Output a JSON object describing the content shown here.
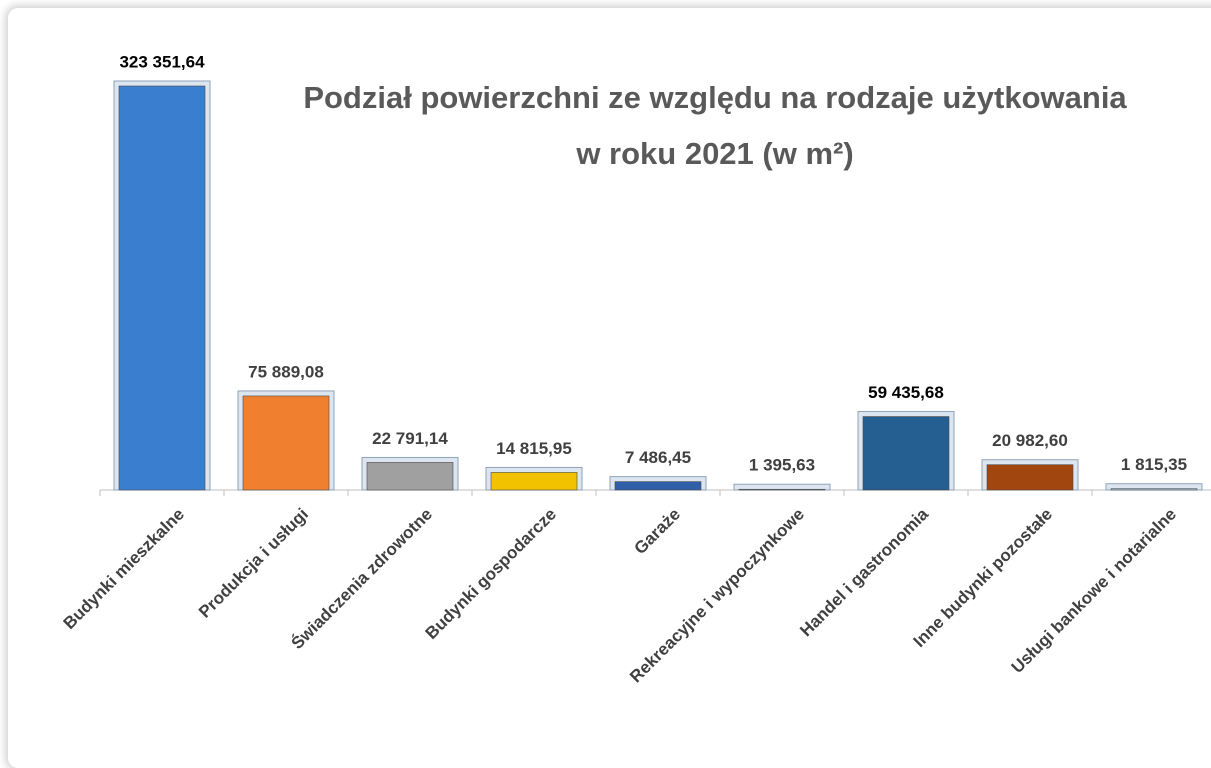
{
  "chart_data": {
    "type": "bar",
    "title": [
      "Podział powierzchni ze względu na rodzaje użytkowania",
      "w roku 2021 (w m²)"
    ],
    "categories": [
      "Budynki mieszkalne",
      "Produkcja i usługi",
      "Świadczenia zdrowotne",
      "Budynki gospodarcze",
      "Garaże",
      "Rekreacyjne i wypoczynkowe",
      "Handel i gastronomia",
      "Inne budynki pozostałe",
      "Usługi bankowe i notarialne"
    ],
    "values": [
      323351.64,
      75889.08,
      22791.14,
      14815.95,
      7486.45,
      1395.63,
      59435.68,
      20982.6,
      1815.35
    ],
    "value_labels": [
      "323 351,64",
      "75 889,08",
      "22 791,14",
      "14 815,95",
      "7 486,45",
      "1 395,63",
      "59 435,68",
      "20 982,60",
      "1 815,35"
    ],
    "colors": [
      "#3a7fcf",
      "#f07f2f",
      "#a0a0a0",
      "#f2c200",
      "#2f5fa8",
      "#9dc3e6",
      "#255e91",
      "#a0460e",
      "#9dc3e6"
    ]
  }
}
